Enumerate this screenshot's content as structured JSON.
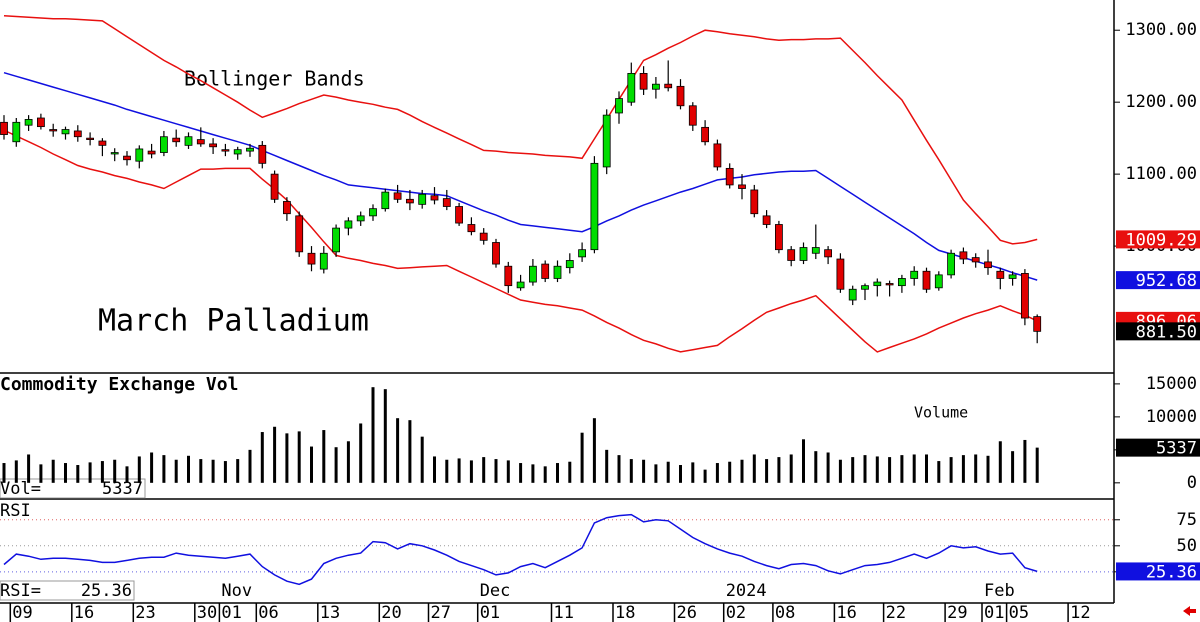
{
  "chart_data": [
    {
      "type": "candlestick",
      "title": "March Palladium",
      "annotation": "Bollinger Bands",
      "categories": [
        null,
        "09",
        null,
        null,
        null,
        null,
        "16",
        null,
        null,
        null,
        null,
        "23",
        null,
        null,
        null,
        null,
        "30",
        null,
        "01",
        null,
        null,
        "06",
        null,
        null,
        null,
        null,
        "13",
        null,
        null,
        null,
        null,
        "20",
        null,
        null,
        null,
        "27",
        null,
        null,
        null,
        "01",
        null,
        null,
        null,
        null,
        null,
        "11",
        null,
        null,
        null,
        null,
        "18",
        null,
        null,
        null,
        null,
        "26",
        null,
        null,
        null,
        "02",
        null,
        null,
        null,
        "08",
        null,
        null,
        null,
        null,
        "16",
        null,
        null,
        null,
        "22",
        null,
        null,
        null,
        null,
        "29",
        null,
        null,
        "01",
        null,
        "05",
        null,
        null,
        null,
        null,
        "12"
      ],
      "month_labels": [
        null,
        null,
        null,
        null,
        null,
        null,
        null,
        null,
        null,
        null,
        null,
        null,
        null,
        null,
        null,
        null,
        null,
        null,
        "Nov",
        null,
        null,
        null,
        null,
        null,
        null,
        null,
        null,
        null,
        null,
        null,
        null,
        null,
        null,
        null,
        null,
        null,
        null,
        null,
        null,
        "Dec",
        null,
        null,
        null,
        null,
        null,
        null,
        null,
        null,
        null,
        null,
        null,
        null,
        null,
        null,
        null,
        null,
        null,
        null,
        null,
        "2024",
        null,
        null,
        null,
        null,
        null,
        null,
        null,
        null,
        null,
        null,
        null,
        null,
        null,
        null,
        null,
        null,
        null,
        null,
        null,
        null,
        "Feb",
        null,
        null,
        null,
        null,
        null,
        null,
        null
      ],
      "open": [
        1172,
        1145,
        1168,
        1178,
        1162,
        1156,
        1160,
        1150,
        1146,
        1128,
        1125,
        1118,
        1132,
        1130,
        1150,
        1140,
        1148,
        1142,
        1134,
        1128,
        1132,
        1140,
        1100,
        1062,
        1042,
        990,
        968,
        992,
        1025,
        1035,
        1042,
        1052,
        1074,
        1065,
        1058,
        1070,
        1066,
        1055,
        1030,
        1018,
        1005,
        972,
        942,
        950,
        975,
        955,
        970,
        985,
        995,
        1110,
        1185,
        1200,
        1240,
        1218,
        1225,
        1222,
        1195,
        1165,
        1142,
        1108,
        1085,
        1078,
        1042,
        1030,
        995,
        980,
        990,
        995,
        982,
        925,
        940,
        945,
        948,
        945,
        955,
        965,
        942,
        960,
        992,
        984,
        978,
        965,
        955,
        962,
        902,
        null,
        null,
        null
      ],
      "high": [
        1182,
        1178,
        1182,
        1184,
        1170,
        1166,
        1168,
        1158,
        1150,
        1136,
        1132,
        1140,
        1142,
        1160,
        1162,
        1158,
        1165,
        1150,
        1142,
        1138,
        1142,
        1146,
        1105,
        1068,
        1048,
        1000,
        1000,
        1030,
        1040,
        1048,
        1058,
        1080,
        1085,
        1078,
        1078,
        1082,
        1078,
        1060,
        1040,
        1025,
        1010,
        978,
        960,
        982,
        980,
        980,
        990,
        1005,
        1125,
        1190,
        1215,
        1255,
        1250,
        1235,
        1258,
        1232,
        1200,
        1175,
        1148,
        1115,
        1100,
        1085,
        1050,
        1035,
        1000,
        1005,
        1030,
        1000,
        990,
        945,
        948,
        955,
        952,
        960,
        972,
        970,
        965,
        995,
        998,
        990,
        995,
        970,
        965,
        968,
        905,
        null,
        null,
        null
      ],
      "low": [
        1148,
        1138,
        1160,
        1162,
        1152,
        1148,
        1145,
        1140,
        1125,
        1118,
        1112,
        1108,
        1122,
        1125,
        1138,
        1135,
        1138,
        1128,
        1125,
        1120,
        1124,
        1108,
        1060,
        1035,
        985,
        965,
        962,
        985,
        1015,
        1028,
        1035,
        1048,
        1060,
        1050,
        1052,
        1058,
        1050,
        1028,
        1015,
        1002,
        970,
        935,
        938,
        945,
        950,
        950,
        962,
        978,
        990,
        1100,
        1170,
        1195,
        1210,
        1205,
        1215,
        1190,
        1160,
        1140,
        1105,
        1080,
        1065,
        1040,
        1025,
        990,
        972,
        975,
        982,
        975,
        935,
        918,
        925,
        930,
        930,
        935,
        945,
        935,
        938,
        955,
        975,
        970,
        960,
        940,
        945,
        890,
        865,
        null,
        null,
        null
      ],
      "close": [
        1155,
        1172,
        1176,
        1166,
        1160,
        1162,
        1152,
        1148,
        1140,
        1130,
        1120,
        1135,
        1128,
        1152,
        1145,
        1152,
        1142,
        1138,
        1132,
        1134,
        1136,
        1115,
        1065,
        1045,
        992,
        975,
        990,
        1025,
        1035,
        1042,
        1052,
        1075,
        1065,
        1060,
        1072,
        1064,
        1055,
        1032,
        1020,
        1008,
        975,
        945,
        950,
        972,
        955,
        972,
        980,
        995,
        1115,
        1182,
        1205,
        1240,
        1218,
        1225,
        1220,
        1195,
        1168,
        1145,
        1110,
        1085,
        1080,
        1045,
        1030,
        995,
        980,
        998,
        998,
        985,
        940,
        940,
        945,
        950,
        946,
        955,
        965,
        940,
        960,
        990,
        982,
        978,
        970,
        955,
        960,
        900,
        881.5,
        null,
        null,
        null
      ],
      "close_value_labels": [
        null,
        null,
        null,
        null,
        null,
        null,
        null,
        null,
        null,
        null,
        null,
        null,
        null,
        null,
        null,
        null,
        null,
        null,
        null,
        null,
        null,
        null,
        null,
        null,
        null,
        null,
        null,
        null,
        null,
        null,
        null,
        null,
        null,
        null,
        null,
        null,
        null,
        null,
        null,
        null,
        null,
        null,
        null,
        null,
        null,
        null,
        null,
        null,
        null,
        null,
        null,
        null,
        null,
        null,
        null,
        null,
        null,
        null,
        null,
        null,
        null,
        null,
        null,
        null,
        null,
        null,
        null,
        null,
        null,
        null,
        null,
        null,
        null,
        null,
        null,
        null,
        null,
        null,
        null,
        null,
        null,
        null,
        null,
        null,
        "881.50",
        null,
        null,
        null
      ],
      "up_color": "#00dd00",
      "down_color": "#e00000",
      "close_label_color": "#000000",
      "overlays": [
        {
          "color": "#e8100f",
          "values": [
            1320,
            1319,
            1318,
            1317,
            1316,
            1316,
            1315,
            1314,
            1313,
            1302,
            1291,
            1280,
            1269,
            1258,
            1249,
            1239,
            1230,
            1220,
            1210,
            1200,
            1189,
            1179,
            1185,
            1191,
            1198,
            1204,
            1210,
            1207,
            1203,
            1200,
            1197,
            1193,
            1190,
            1182,
            1173,
            1165,
            1157,
            1149,
            1141,
            1133,
            1132,
            1130,
            1129,
            1128,
            1126,
            1125,
            1124,
            1122,
            1149,
            1176,
            1204,
            1231,
            1258,
            1266,
            1275,
            1283,
            1292,
            1300,
            1298,
            1295,
            1293,
            1291,
            1288,
            1286,
            1287,
            1287,
            1288,
            1288,
            1289,
            1272,
            1255,
            1237,
            1220,
            1203,
            1175,
            1147,
            1120,
            1092,
            1064,
            1045,
            1027,
            1008,
            1003,
            1005,
            1009.29,
            null,
            null,
            null
          ]
        },
        {
          "color": "#1010e0",
          "values": [
            1241,
            1236,
            1231,
            1226,
            1221,
            1216,
            1211,
            1206,
            1201,
            1196,
            1190,
            1185,
            1180,
            1175,
            1170,
            1165,
            1160,
            1155,
            1150,
            1145,
            1140,
            1133,
            1126,
            1119,
            1112,
            1105,
            1098,
            1092,
            1085,
            1083,
            1081,
            1079,
            1077,
            1075,
            1073,
            1072,
            1070,
            1063,
            1056,
            1049,
            1043,
            1036,
            1030,
            1028,
            1026,
            1024,
            1022,
            1020,
            1027,
            1035,
            1042,
            1050,
            1057,
            1063,
            1069,
            1075,
            1080,
            1086,
            1092,
            1094,
            1096,
            1099,
            1101,
            1103,
            1104,
            1104,
            1105,
            1094,
            1083,
            1072,
            1061,
            1050,
            1039,
            1028,
            1017,
            1005,
            994,
            989,
            984,
            979,
            974,
            969,
            963,
            958,
            952.68,
            null,
            null,
            null
          ]
        },
        {
          "color": "#e8100f",
          "values": [
            1161,
            1153,
            1145,
            1137,
            1128,
            1120,
            1112,
            1107,
            1103,
            1098,
            1094,
            1089,
            1085,
            1080,
            1089,
            1098,
            1107,
            1107,
            1108,
            1108,
            1108,
            1093,
            1079,
            1064,
            1045,
            1026,
            1006,
            987,
            983,
            980,
            976,
            973,
            969,
            970,
            971,
            972,
            973,
            965,
            957,
            949,
            941,
            933,
            925,
            922,
            919,
            917,
            914,
            911,
            903,
            894,
            886,
            877,
            869,
            864,
            858,
            853,
            856,
            859,
            862,
            874,
            885,
            897,
            908,
            914,
            920,
            925,
            931,
            915,
            899,
            883,
            867,
            853,
            859,
            865,
            871,
            878,
            886,
            893,
            900,
            906,
            911,
            917,
            910,
            904,
            896.06,
            null,
            null,
            null
          ]
        }
      ],
      "ylim": [
        825,
        1342
      ],
      "yticks": [
        {
          "value": 1300,
          "label": "1300.00"
        },
        {
          "value": 1200,
          "label": "1200.00"
        },
        {
          "value": 1100,
          "label": "1100.00"
        },
        {
          "value": 1000,
          "label": "1000.00"
        }
      ]
    },
    {
      "type": "bar",
      "title": "Commodity Exchange Vol",
      "annotation": "Volume",
      "readout_label": "Vol=",
      "color": "#000000",
      "values": [
        3000,
        3400,
        4300,
        2800,
        3500,
        3000,
        2700,
        3100,
        3300,
        3500,
        2500,
        4000,
        4600,
        4200,
        3500,
        4100,
        3600,
        3500,
        3300,
        3600,
        5000,
        7700,
        8500,
        7500,
        7800,
        5500,
        8000,
        5400,
        6300,
        9000,
        14500,
        14200,
        9800,
        9500,
        7000,
        4000,
        3500,
        3700,
        3400,
        3900,
        3600,
        3400,
        3000,
        2800,
        2500,
        3000,
        3200,
        7600,
        9800,
        5000,
        4200,
        3600,
        3500,
        2800,
        3200,
        2700,
        3100,
        2000,
        3000,
        3200,
        3500,
        4300,
        3600,
        3900,
        4300,
        6600,
        4800,
        4600,
        3500,
        3900,
        4200,
        4000,
        3900,
        4200,
        4300,
        4300,
        3300,
        3900,
        4200,
        4300,
        4100,
        6300,
        4800,
        6500,
        5337,
        null,
        null,
        null
      ],
      "ylim": [
        -2300,
        16500
      ],
      "yticks": [
        15000,
        10000,
        5000,
        0
      ]
    },
    {
      "type": "line",
      "title": "RSI",
      "readout_label": "RSI=",
      "color": "#1010e0",
      "values": [
        32,
        42,
        40,
        37,
        38,
        38,
        37,
        36,
        34,
        34,
        36,
        38,
        39,
        39,
        43,
        41,
        40,
        39,
        38,
        40,
        42,
        30,
        22,
        16,
        13,
        18,
        33,
        38,
        41,
        43,
        54,
        53,
        47,
        52,
        50,
        46,
        41,
        35,
        31,
        27,
        22,
        24,
        30,
        33,
        29,
        35,
        41,
        48,
        72,
        77,
        79,
        80,
        73,
        75,
        74,
        66,
        58,
        52,
        47,
        43,
        40,
        35,
        31,
        28,
        32,
        33,
        31,
        26,
        23,
        27,
        31,
        32,
        34,
        38,
        42,
        38,
        43,
        50,
        48,
        49,
        45,
        42,
        43,
        29,
        25.36,
        null,
        null,
        null
      ],
      "ylim": [
        -4,
        94
      ],
      "yticks": [
        75,
        50,
        25
      ],
      "tick_colors": [
        "#e06060",
        "#999999",
        "#6060e0"
      ]
    }
  ]
}
